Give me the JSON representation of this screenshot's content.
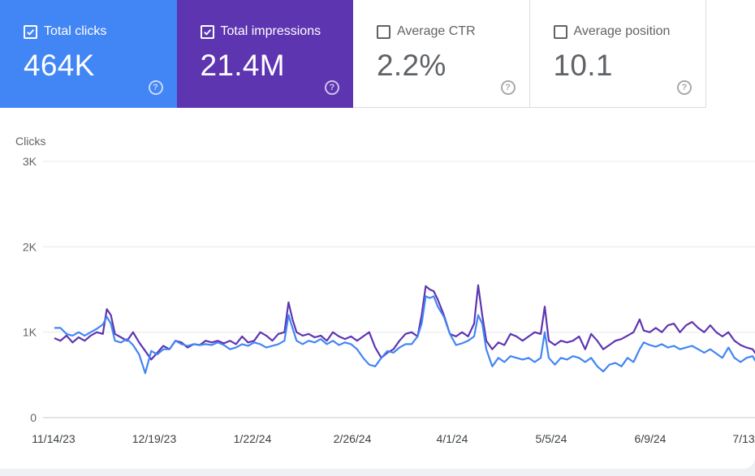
{
  "metrics": [
    {
      "label": "Total clicks",
      "value": "464K",
      "checked": true,
      "color": "#4285f4",
      "help_icon": "help-circle-icon"
    },
    {
      "label": "Total impressions",
      "value": "21.4M",
      "checked": true,
      "color": "#5e35b1",
      "help_icon": "help-circle-icon"
    },
    {
      "label": "Average CTR",
      "value": "2.2%",
      "checked": false,
      "help_icon": "help-circle-icon"
    },
    {
      "label": "Average position",
      "value": "10.1",
      "checked": false,
      "help_icon": "help-circle-icon"
    }
  ],
  "chart_data": {
    "type": "line",
    "title": "",
    "ylabel": "Clicks",
    "ylim": [
      0,
      3000
    ],
    "yticks": [
      "0",
      "1K",
      "2K",
      "3K"
    ],
    "xticks": [
      "11/14/23",
      "12/19/23",
      "1/22/24",
      "2/26/24",
      "4/1/24",
      "5/5/24",
      "6/9/24",
      "7/13/"
    ],
    "grid": true,
    "series": [
      {
        "color": "#5e35b1",
        "points": [
          [
            0,
            930
          ],
          [
            3,
            900
          ],
          [
            6,
            960
          ],
          [
            9,
            880
          ],
          [
            12,
            940
          ],
          [
            15,
            900
          ],
          [
            18,
            960
          ],
          [
            21,
            1000
          ],
          [
            24,
            980
          ],
          [
            26,
            1270
          ],
          [
            28,
            1200
          ],
          [
            30,
            980
          ],
          [
            33,
            940
          ],
          [
            36,
            900
          ],
          [
            39,
            1000
          ],
          [
            42,
            880
          ],
          [
            45,
            780
          ],
          [
            48,
            680
          ],
          [
            51,
            760
          ],
          [
            54,
            840
          ],
          [
            57,
            800
          ],
          [
            60,
            900
          ],
          [
            63,
            880
          ],
          [
            66,
            820
          ],
          [
            69,
            860
          ],
          [
            72,
            850
          ],
          [
            75,
            900
          ],
          [
            78,
            880
          ],
          [
            81,
            900
          ],
          [
            84,
            870
          ],
          [
            87,
            900
          ],
          [
            90,
            860
          ],
          [
            93,
            950
          ],
          [
            96,
            880
          ],
          [
            99,
            900
          ],
          [
            102,
            1000
          ],
          [
            105,
            960
          ],
          [
            108,
            900
          ],
          [
            111,
            980
          ],
          [
            114,
            1000
          ],
          [
            116,
            1350
          ],
          [
            118,
            1150
          ],
          [
            120,
            1000
          ],
          [
            123,
            960
          ],
          [
            126,
            980
          ],
          [
            129,
            940
          ],
          [
            132,
            960
          ],
          [
            135,
            900
          ],
          [
            138,
            1000
          ],
          [
            141,
            950
          ],
          [
            144,
            920
          ],
          [
            147,
            950
          ],
          [
            150,
            900
          ],
          [
            153,
            950
          ],
          [
            156,
            1000
          ],
          [
            159,
            820
          ],
          [
            162,
            700
          ],
          [
            165,
            760
          ],
          [
            168,
            800
          ],
          [
            171,
            900
          ],
          [
            174,
            980
          ],
          [
            177,
            1000
          ],
          [
            180,
            950
          ],
          [
            182,
            1200
          ],
          [
            184,
            1540
          ],
          [
            186,
            1500
          ],
          [
            188,
            1480
          ],
          [
            190,
            1380
          ],
          [
            193,
            1200
          ],
          [
            196,
            980
          ],
          [
            199,
            950
          ],
          [
            202,
            1000
          ],
          [
            205,
            950
          ],
          [
            208,
            1100
          ],
          [
            210,
            1550
          ],
          [
            212,
            1200
          ],
          [
            214,
            900
          ],
          [
            217,
            800
          ],
          [
            220,
            880
          ],
          [
            223,
            850
          ],
          [
            226,
            980
          ],
          [
            229,
            950
          ],
          [
            232,
            900
          ],
          [
            235,
            950
          ],
          [
            238,
            1000
          ],
          [
            241,
            980
          ],
          [
            243,
            1300
          ],
          [
            245,
            900
          ],
          [
            248,
            850
          ],
          [
            251,
            900
          ],
          [
            254,
            880
          ],
          [
            257,
            900
          ],
          [
            260,
            950
          ],
          [
            263,
            800
          ],
          [
            266,
            980
          ],
          [
            269,
            900
          ],
          [
            272,
            800
          ],
          [
            275,
            850
          ],
          [
            278,
            900
          ],
          [
            281,
            920
          ],
          [
            284,
            960
          ],
          [
            287,
            1000
          ],
          [
            290,
            1150
          ],
          [
            292,
            1020
          ],
          [
            295,
            1000
          ],
          [
            298,
            1050
          ],
          [
            301,
            1000
          ],
          [
            304,
            1080
          ],
          [
            307,
            1100
          ],
          [
            310,
            1000
          ],
          [
            313,
            1080
          ],
          [
            316,
            1120
          ],
          [
            319,
            1050
          ],
          [
            322,
            1000
          ],
          [
            325,
            1080
          ],
          [
            328,
            1000
          ],
          [
            331,
            950
          ],
          [
            334,
            1000
          ],
          [
            337,
            900
          ],
          [
            340,
            850
          ],
          [
            343,
            820
          ],
          [
            346,
            800
          ],
          [
            349,
            700
          ],
          [
            352,
            650
          ]
        ]
      },
      {
        "color": "#4285f4",
        "points": [
          [
            0,
            1050
          ],
          [
            3,
            1050
          ],
          [
            6,
            980
          ],
          [
            9,
            960
          ],
          [
            12,
            1000
          ],
          [
            15,
            960
          ],
          [
            18,
            1000
          ],
          [
            21,
            1040
          ],
          [
            24,
            1090
          ],
          [
            26,
            1180
          ],
          [
            28,
            1100
          ],
          [
            30,
            900
          ],
          [
            33,
            880
          ],
          [
            36,
            920
          ],
          [
            39,
            850
          ],
          [
            42,
            740
          ],
          [
            45,
            520
          ],
          [
            48,
            780
          ],
          [
            51,
            740
          ],
          [
            54,
            800
          ],
          [
            57,
            800
          ],
          [
            60,
            900
          ],
          [
            63,
            860
          ],
          [
            66,
            840
          ],
          [
            69,
            860
          ],
          [
            72,
            850
          ],
          [
            75,
            860
          ],
          [
            78,
            850
          ],
          [
            81,
            880
          ],
          [
            84,
            850
          ],
          [
            87,
            800
          ],
          [
            90,
            820
          ],
          [
            93,
            860
          ],
          [
            96,
            840
          ],
          [
            99,
            880
          ],
          [
            102,
            860
          ],
          [
            105,
            820
          ],
          [
            108,
            840
          ],
          [
            111,
            860
          ],
          [
            114,
            900
          ],
          [
            116,
            1200
          ],
          [
            118,
            1050
          ],
          [
            120,
            900
          ],
          [
            123,
            860
          ],
          [
            126,
            900
          ],
          [
            129,
            880
          ],
          [
            132,
            920
          ],
          [
            135,
            860
          ],
          [
            138,
            900
          ],
          [
            141,
            850
          ],
          [
            144,
            880
          ],
          [
            147,
            860
          ],
          [
            150,
            800
          ],
          [
            153,
            700
          ],
          [
            156,
            620
          ],
          [
            159,
            600
          ],
          [
            162,
            700
          ],
          [
            165,
            780
          ],
          [
            168,
            760
          ],
          [
            171,
            820
          ],
          [
            174,
            860
          ],
          [
            177,
            860
          ],
          [
            180,
            950
          ],
          [
            182,
            1100
          ],
          [
            184,
            1420
          ],
          [
            186,
            1400
          ],
          [
            188,
            1420
          ],
          [
            190,
            1300
          ],
          [
            193,
            1180
          ],
          [
            196,
            980
          ],
          [
            199,
            850
          ],
          [
            202,
            870
          ],
          [
            205,
            900
          ],
          [
            208,
            950
          ],
          [
            210,
            1200
          ],
          [
            212,
            1100
          ],
          [
            214,
            800
          ],
          [
            217,
            600
          ],
          [
            220,
            700
          ],
          [
            223,
            650
          ],
          [
            226,
            720
          ],
          [
            229,
            700
          ],
          [
            232,
            680
          ],
          [
            235,
            700
          ],
          [
            238,
            650
          ],
          [
            241,
            700
          ],
          [
            243,
            1000
          ],
          [
            245,
            700
          ],
          [
            248,
            620
          ],
          [
            251,
            700
          ],
          [
            254,
            680
          ],
          [
            257,
            720
          ],
          [
            260,
            700
          ],
          [
            263,
            650
          ],
          [
            266,
            700
          ],
          [
            269,
            600
          ],
          [
            272,
            540
          ],
          [
            275,
            620
          ],
          [
            278,
            640
          ],
          [
            281,
            600
          ],
          [
            284,
            700
          ],
          [
            287,
            650
          ],
          [
            290,
            800
          ],
          [
            292,
            880
          ],
          [
            295,
            850
          ],
          [
            298,
            830
          ],
          [
            301,
            860
          ],
          [
            304,
            820
          ],
          [
            307,
            840
          ],
          [
            310,
            800
          ],
          [
            313,
            820
          ],
          [
            316,
            840
          ],
          [
            319,
            800
          ],
          [
            322,
            760
          ],
          [
            325,
            800
          ],
          [
            328,
            750
          ],
          [
            331,
            700
          ],
          [
            334,
            820
          ],
          [
            337,
            700
          ],
          [
            340,
            650
          ],
          [
            343,
            700
          ],
          [
            346,
            720
          ],
          [
            349,
            600
          ],
          [
            352,
            550
          ]
        ]
      }
    ]
  }
}
